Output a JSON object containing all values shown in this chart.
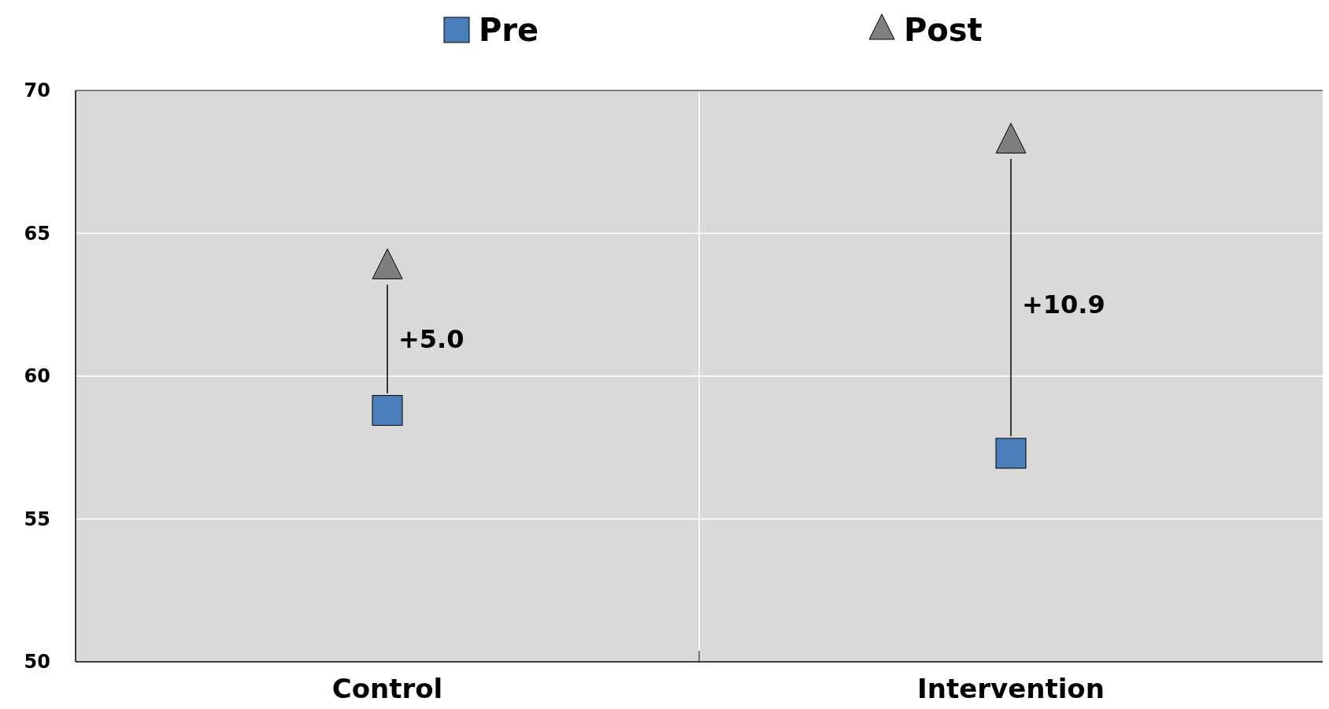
{
  "chart_data": {
    "type": "scatter",
    "categories": [
      "Control",
      "Intervention"
    ],
    "ylim": [
      50,
      70
    ],
    "yticks": [
      50,
      55,
      60,
      65,
      70
    ],
    "grid": true,
    "legend": "top",
    "series": [
      {
        "type": "line",
        "x": [
          "Control",
          "Control"
        ],
        "values": [
          59.4,
          63.2
        ],
        "color": "#000000",
        "marker": "none"
      },
      {
        "type": "line",
        "x": [
          "Intervention",
          "Intervention"
        ],
        "values": [
          57.9,
          67.6
        ],
        "color": "#000000",
        "marker": "none"
      },
      {
        "name": "Pre",
        "values": [
          58.8,
          57.3
        ],
        "color": "#4a7ebb",
        "marker": "square"
      },
      {
        "name": "Post",
        "values": [
          63.8,
          68.2
        ],
        "color": "#7f7f7f",
        "marker": "triangle"
      }
    ],
    "annotations": [
      "+5.0",
      "+10.9"
    ]
  }
}
